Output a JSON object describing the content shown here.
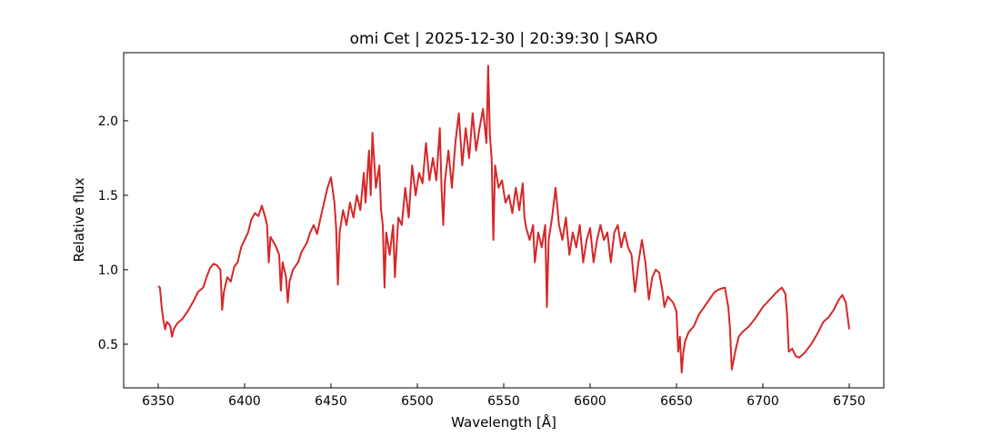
{
  "chart_data": {
    "type": "line",
    "title": "omi Cet | 2025-12-30 | 20:39:30 | SARO",
    "x_label": "Wavelength [Å]",
    "y_label": "Relative flux",
    "color": "#d62728",
    "xlim": [
      6330,
      6770
    ],
    "ylim": [
      0.207,
      2.457
    ],
    "xticks": [
      6350,
      6400,
      6450,
      6500,
      6550,
      6600,
      6650,
      6700,
      6750
    ],
    "yticks": [
      0.5,
      {
        "value": 1,
        "label": "1.0"
      },
      1.5,
      {
        "value": 2,
        "label": "2.0"
      }
    ],
    "x": [
      6350,
      6351,
      6352,
      6353,
      6354,
      6355,
      6356,
      6357,
      6358,
      6359,
      6361,
      6364,
      6367,
      6370,
      6373,
      6376,
      6378,
      6380,
      6382,
      6384,
      6386,
      6387,
      6388,
      6390,
      6392,
      6394,
      6396,
      6398,
      6400,
      6402,
      6404,
      6406,
      6408,
      6410,
      6412,
      6413,
      6414,
      6415,
      6418,
      6420,
      6421,
      6422,
      6424,
      6425,
      6426,
      6428,
      6431,
      6433,
      6436,
      6438,
      6440,
      6442,
      6444,
      6446,
      6448,
      6450,
      6452,
      6453,
      6454,
      6455,
      6457,
      6459,
      6461,
      6463,
      6465,
      6467,
      6469,
      6470,
      6472,
      6473,
      6474,
      6476,
      6478,
      6479,
      6480,
      6481,
      6482,
      6484,
      6486,
      6487,
      6489,
      6491,
      6493,
      6495,
      6497,
      6499,
      6501,
      6503,
      6505,
      6507,
      6509,
      6511,
      6513,
      6514,
      6515,
      6516,
      6518,
      6520,
      6522,
      6524,
      6526,
      6528,
      6530,
      6532,
      6534,
      6536,
      6538,
      6540,
      6541,
      6542,
      6543,
      6544,
      6545,
      6547,
      6549,
      6551,
      6553,
      6555,
      6557,
      6559,
      6561,
      6562,
      6563,
      6565,
      6567,
      6568,
      6570,
      6572,
      6574,
      6575,
      6576,
      6578,
      6580,
      6582,
      6584,
      6586,
      6588,
      6590,
      6592,
      6594,
      6596,
      6598,
      6600,
      6602,
      6604,
      6606,
      6608,
      6610,
      6612,
      6614,
      6616,
      6618,
      6620,
      6622,
      6624,
      6626,
      6628,
      6630,
      6632,
      6634,
      6636,
      6638,
      6640,
      6642,
      6643,
      6645,
      6648,
      6650,
      6651,
      6652,
      6653,
      6654,
      6655,
      6657,
      6660,
      6663,
      6666,
      6669,
      6672,
      6675,
      6678,
      6680,
      6681,
      6682,
      6684,
      6686,
      6688,
      6692,
      6696,
      6700,
      6704,
      6708,
      6711,
      6713,
      6714,
      6715,
      6717,
      6719,
      6721,
      6724,
      6728,
      6732,
      6735,
      6738,
      6741,
      6744,
      6746,
      6748,
      6750
    ],
    "values": [
      0.89,
      0.88,
      0.75,
      0.66,
      0.6,
      0.65,
      0.64,
      0.62,
      0.55,
      0.6,
      0.64,
      0.67,
      0.72,
      0.78,
      0.85,
      0.88,
      0.95,
      1.01,
      1.04,
      1.03,
      1.0,
      0.73,
      0.85,
      0.95,
      0.92,
      1.02,
      1.05,
      1.15,
      1.2,
      1.25,
      1.34,
      1.38,
      1.36,
      1.43,
      1.35,
      1.3,
      1.05,
      1.22,
      1.16,
      1.1,
      0.86,
      1.05,
      0.95,
      0.78,
      0.92,
      1.0,
      1.05,
      1.12,
      1.18,
      1.25,
      1.3,
      1.24,
      1.35,
      1.45,
      1.55,
      1.62,
      1.45,
      1.28,
      0.9,
      1.25,
      1.4,
      1.3,
      1.45,
      1.35,
      1.5,
      1.4,
      1.65,
      1.45,
      1.8,
      1.5,
      1.92,
      1.55,
      1.7,
      1.4,
      1.3,
      0.88,
      1.25,
      1.1,
      1.3,
      0.95,
      1.35,
      1.3,
      1.55,
      1.35,
      1.7,
      1.5,
      1.65,
      1.58,
      1.85,
      1.6,
      1.75,
      1.6,
      1.95,
      1.55,
      1.3,
      1.6,
      1.8,
      1.55,
      1.85,
      2.05,
      1.7,
      1.95,
      1.75,
      2.05,
      1.8,
      1.95,
      2.08,
      1.85,
      2.37,
      1.9,
      1.75,
      1.2,
      1.7,
      1.55,
      1.6,
      1.45,
      1.5,
      1.38,
      1.55,
      1.4,
      1.58,
      1.35,
      1.28,
      1.2,
      1.3,
      1.05,
      1.25,
      1.15,
      1.3,
      0.75,
      1.2,
      1.35,
      1.55,
      1.3,
      1.2,
      1.35,
      1.1,
      1.25,
      1.15,
      1.3,
      1.05,
      1.2,
      1.28,
      1.05,
      1.2,
      1.3,
      1.2,
      1.25,
      1.05,
      1.25,
      1.3,
      1.15,
      1.25,
      1.15,
      1.1,
      0.85,
      1.05,
      1.2,
      1.05,
      0.8,
      0.95,
      1.0,
      0.98,
      0.85,
      0.75,
      0.82,
      0.78,
      0.72,
      0.45,
      0.55,
      0.31,
      0.45,
      0.52,
      0.58,
      0.62,
      0.7,
      0.75,
      0.8,
      0.85,
      0.87,
      0.88,
      0.75,
      0.6,
      0.33,
      0.45,
      0.55,
      0.58,
      0.62,
      0.68,
      0.75,
      0.8,
      0.85,
      0.88,
      0.84,
      0.7,
      0.45,
      0.47,
      0.42,
      0.41,
      0.44,
      0.5,
      0.58,
      0.65,
      0.68,
      0.73,
      0.8,
      0.83,
      0.78,
      0.6
    ]
  }
}
